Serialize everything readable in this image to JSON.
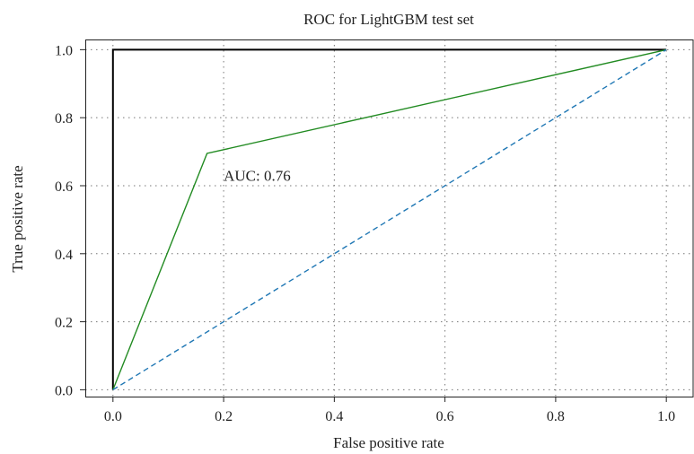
{
  "chart_data": {
    "type": "line",
    "title": "ROC for LightGBM test set",
    "xlabel": "False positive rate",
    "ylabel": "True positive rate",
    "xlim": [
      -0.05,
      1.05
    ],
    "ylim": [
      -0.02,
      1.03
    ],
    "xticks": [
      0.0,
      0.2,
      0.4,
      0.6,
      0.8,
      1.0
    ],
    "xtick_labels": [
      "0.0",
      "0.2",
      "0.4",
      "0.6",
      "0.8",
      "1.0"
    ],
    "yticks": [
      0.0,
      0.2,
      0.4,
      0.6,
      0.8,
      1.0
    ],
    "ytick_labels": [
      "0.0",
      "0.2",
      "0.4",
      "0.6",
      "0.8",
      "1.0"
    ],
    "grid": true,
    "series": [
      {
        "color": "#000000",
        "style": "solid",
        "x": [
          0.0,
          0.0,
          1.0
        ],
        "y": [
          0.0,
          1.0,
          1.0
        ]
      },
      {
        "color": "#228b22",
        "style": "solid",
        "x": [
          0.0,
          0.17,
          1.0
        ],
        "y": [
          0.0,
          0.695,
          1.0
        ]
      },
      {
        "color": "#1f77b4",
        "style": "dashed",
        "x": [
          0.0,
          1.0
        ],
        "y": [
          0.0,
          1.0
        ]
      }
    ],
    "annotations": [
      {
        "text": "AUC: 0.76",
        "x": 0.2,
        "y": 0.615
      }
    ]
  }
}
